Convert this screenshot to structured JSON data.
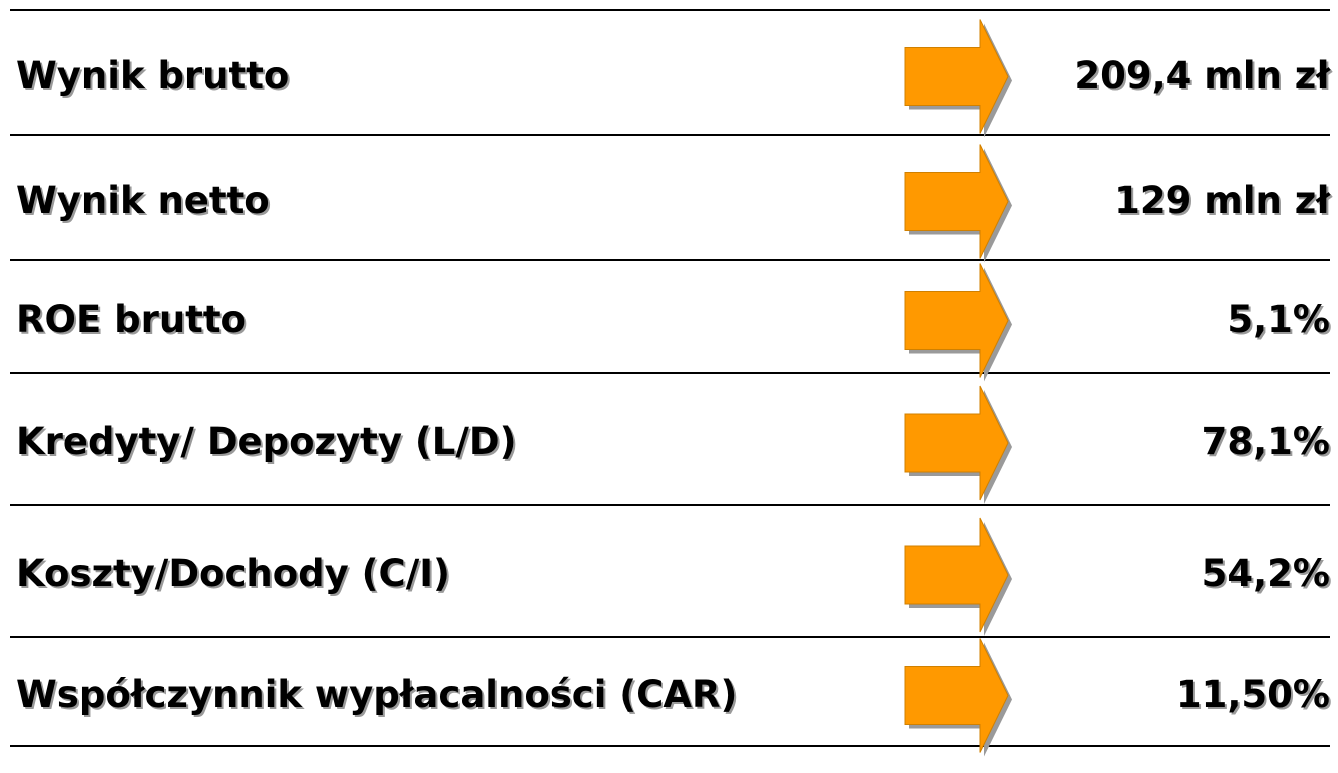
{
  "rows": [
    {
      "label": "Wynik brutto",
      "value": "209,4 mln zł"
    },
    {
      "label": "Wynik netto",
      "value": "129 mln zł"
    },
    {
      "label": "ROE brutto",
      "value": "5,1%"
    },
    {
      "label": "Kredyty/ Depozyty (L/D)",
      "value": "78,1%"
    },
    {
      "label": "Koszty/Dochody (C/I)",
      "value": "54,2%"
    },
    {
      "label": "Współczynnik wypłacalności (CAR)",
      "value": "11,50%"
    }
  ]
}
